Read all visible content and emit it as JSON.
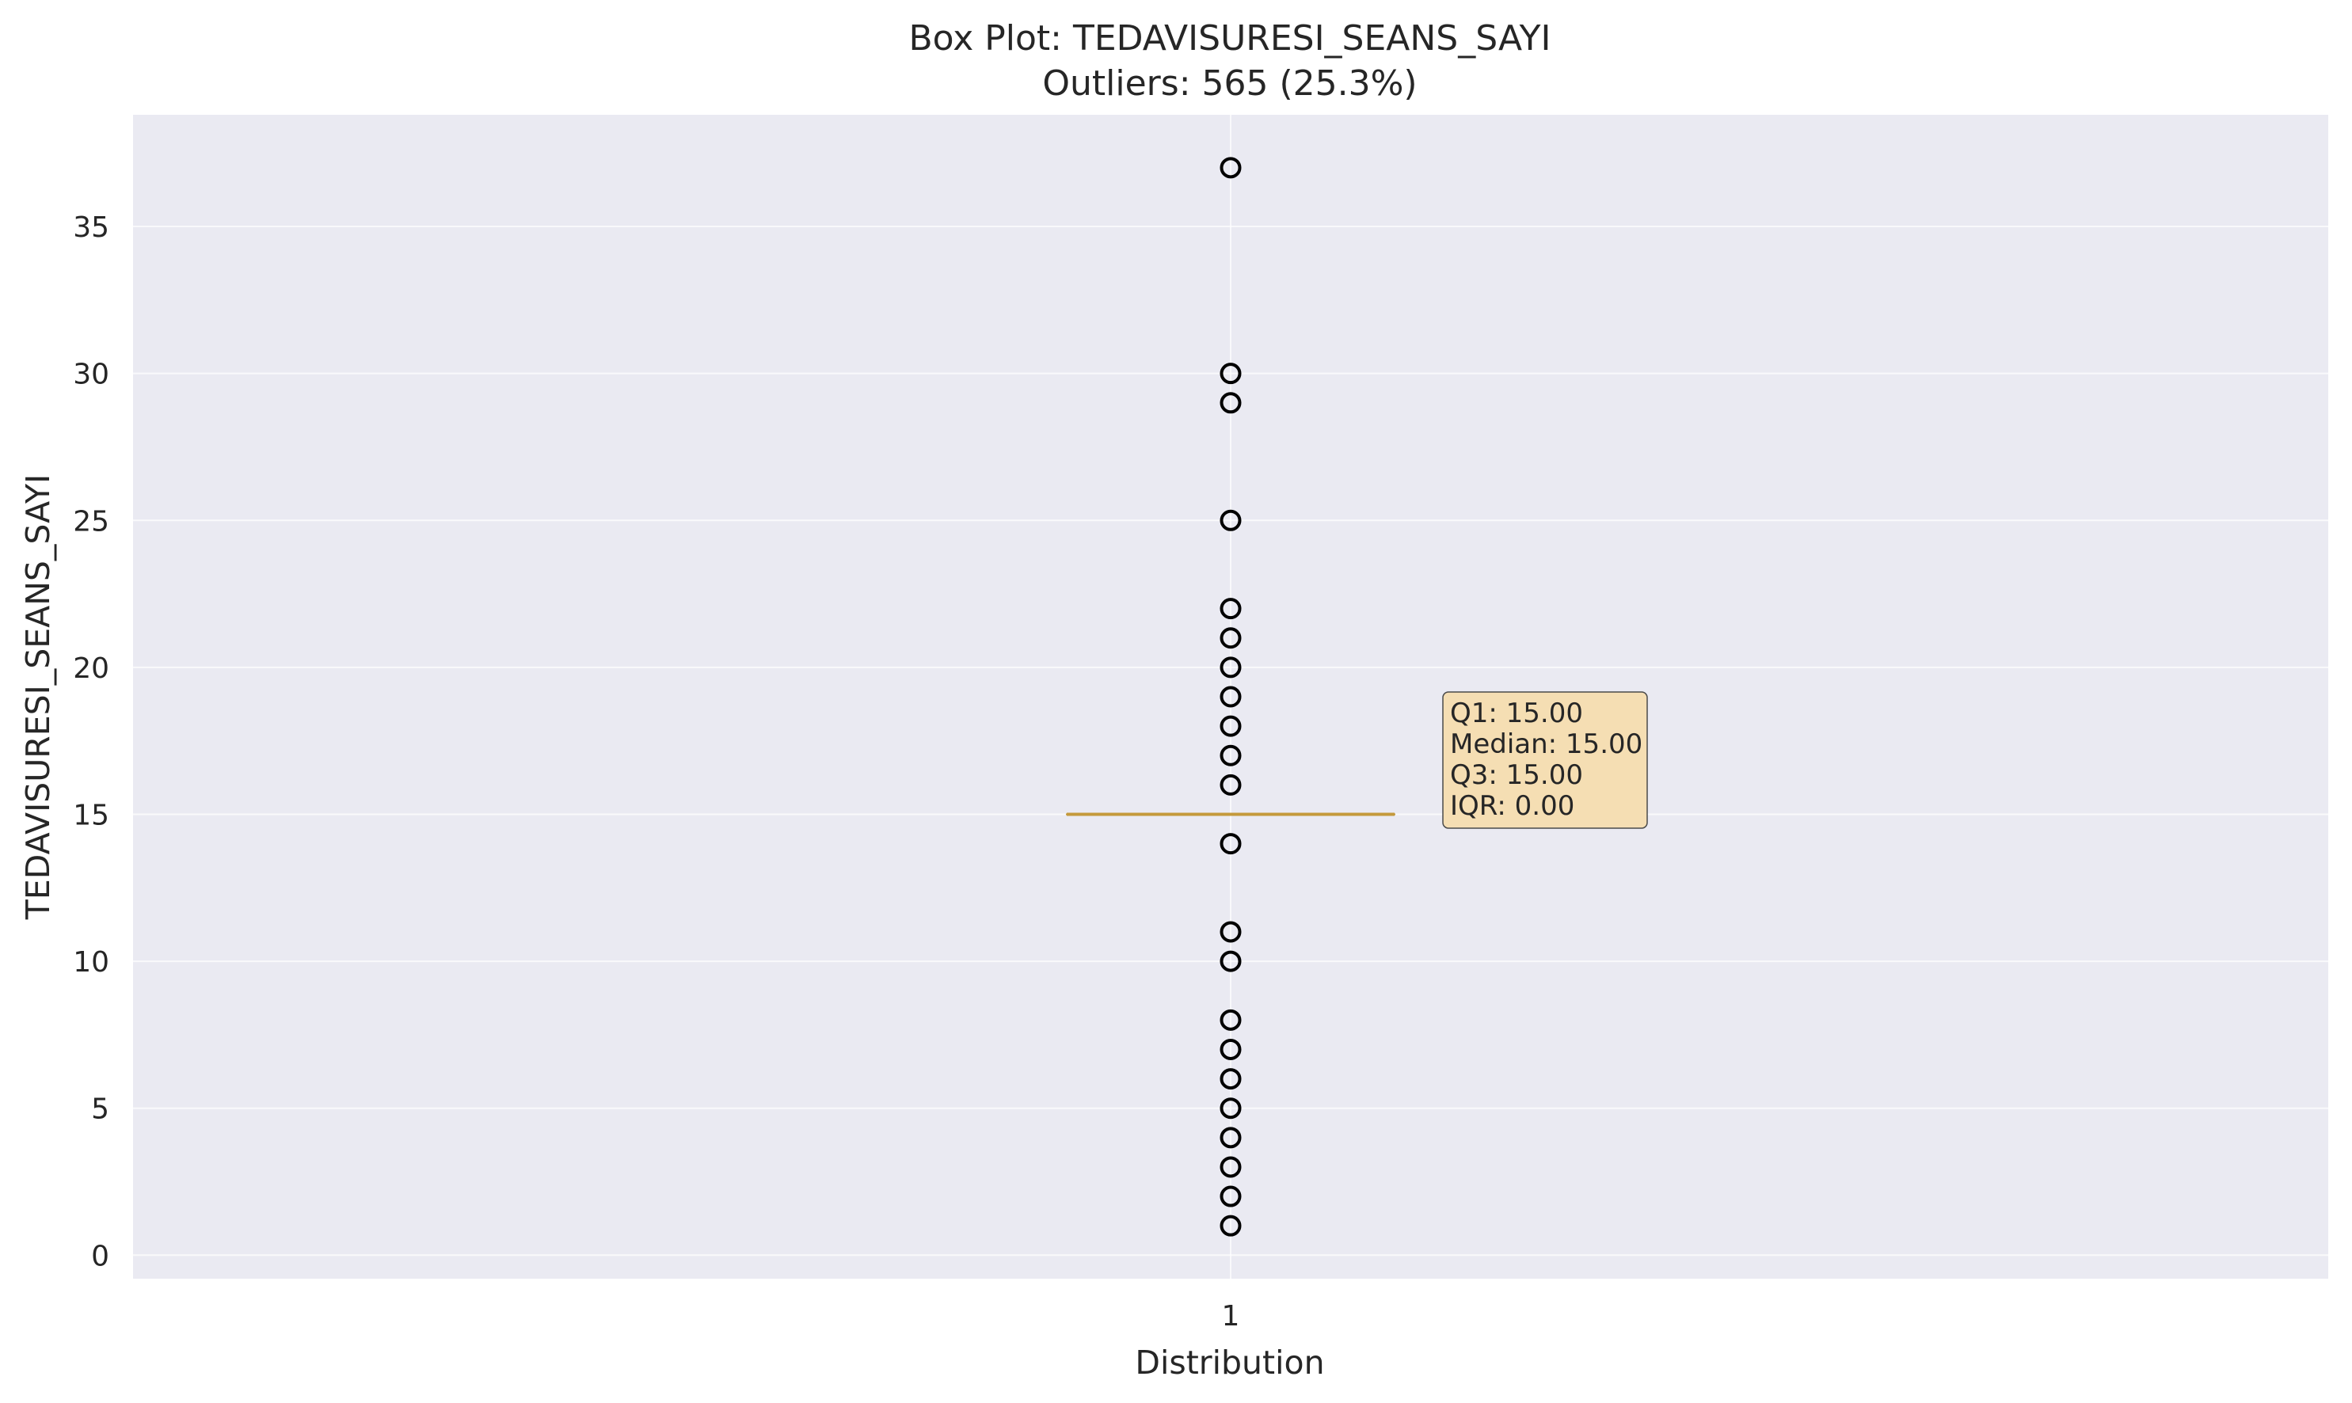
{
  "chart_data": {
    "type": "box",
    "title": "Box Plot: TEDAVISURESI_SEANS_SAYI",
    "subtitle": "Outliers: 565 (25.3%)",
    "xlabel": "Distribution",
    "ylabel": "TEDAVISURESI_SEANS_SAYI",
    "categories": [
      "1"
    ],
    "ylim": [
      -0.8,
      38.8
    ],
    "yticks": [
      0,
      5,
      10,
      15,
      20,
      25,
      30,
      35
    ],
    "grid": true,
    "box": {
      "q1": 15,
      "median": 15,
      "q3": 15,
      "whisker_low": 15,
      "whisker_high": 15
    },
    "outliers": [
      1,
      2,
      3,
      4,
      5,
      6,
      7,
      8,
      10,
      11,
      14,
      16,
      17,
      18,
      19,
      20,
      21,
      22,
      25,
      29,
      30,
      37
    ],
    "stats_box": [
      "Q1: 15.00",
      "Median: 15.00",
      "Q3: 15.00",
      "IQR: 0.00"
    ],
    "colors": {
      "plot_background": "#eaeaf2",
      "grid": "#ffffff",
      "median": "#c49a3c",
      "outlier_edge": "#000000",
      "stats_fill": "#f5deb3"
    }
  }
}
